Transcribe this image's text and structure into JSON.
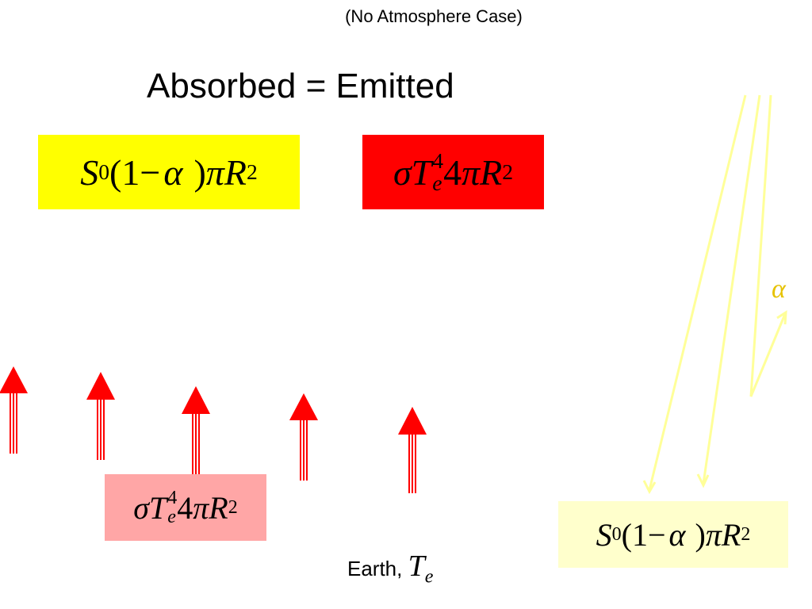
{
  "subtitle": "(No Atmosphere Case)",
  "heading": "Absorbed = Emitted",
  "absorbed_formula": [
    "S",
    "0",
    "(1",
    "−",
    "α",
    ")",
    "π",
    "R",
    "2"
  ],
  "emitted_formula": [
    "σ",
    "T",
    "e",
    "4",
    "4",
    "π",
    "R",
    "2"
  ],
  "surface_emission_formula": [
    "σ",
    "T",
    "e",
    "4",
    "4",
    "π",
    "R",
    "2"
  ],
  "incoming_formula": [
    "S",
    "0",
    "(1",
    "−",
    "α",
    ")",
    "π",
    "R",
    "2"
  ],
  "albedo_label": "α",
  "earth_label": {
    "text": "Earth,",
    "symbol": "T",
    "subscript": "e"
  }
}
